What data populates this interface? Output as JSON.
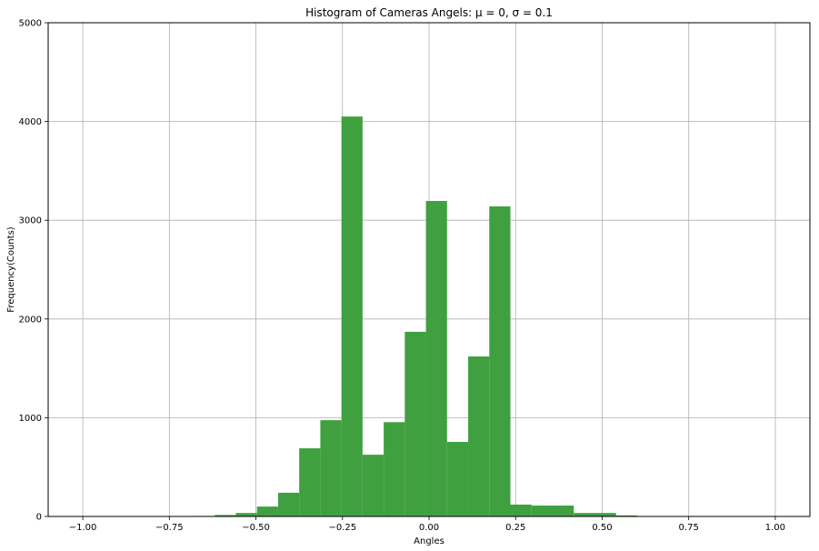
{
  "chart_data": {
    "type": "bar",
    "title": "Histogram of Cameras Angels: μ = 0, σ = 0.1",
    "xlabel": "Angles",
    "ylabel": "Frequency(Counts)",
    "xlim": [
      -1.1,
      1.1
    ],
    "ylim": [
      0,
      5000
    ],
    "grid": true,
    "bar_color": "#40a040",
    "x_ticks": [
      -1.0,
      -0.75,
      -0.5,
      -0.25,
      0.0,
      0.25,
      0.5,
      0.75,
      1.0
    ],
    "x_tick_labels": [
      "−1.00",
      "−0.75",
      "−0.50",
      "−0.25",
      "0.00",
      "0.25",
      "0.50",
      "0.75",
      "1.00"
    ],
    "y_ticks": [
      0,
      1000,
      2000,
      3000,
      4000,
      5000
    ],
    "y_tick_labels": [
      "0",
      "1000",
      "2000",
      "3000",
      "4000",
      "5000"
    ],
    "bin_edges": [
      -0.68,
      -0.619,
      -0.558,
      -0.497,
      -0.436,
      -0.375,
      -0.314,
      -0.253,
      -0.192,
      -0.131,
      -0.07,
      -0.009,
      0.052,
      0.113,
      0.174,
      0.235,
      0.296,
      0.357,
      0.418,
      0.479,
      0.54,
      0.601,
      0.662
    ],
    "values": [
      5,
      15,
      35,
      100,
      240,
      690,
      975,
      4050,
      625,
      955,
      1870,
      3195,
      755,
      1620,
      3140,
      120,
      110,
      110,
      35,
      35,
      10,
      3
    ]
  }
}
